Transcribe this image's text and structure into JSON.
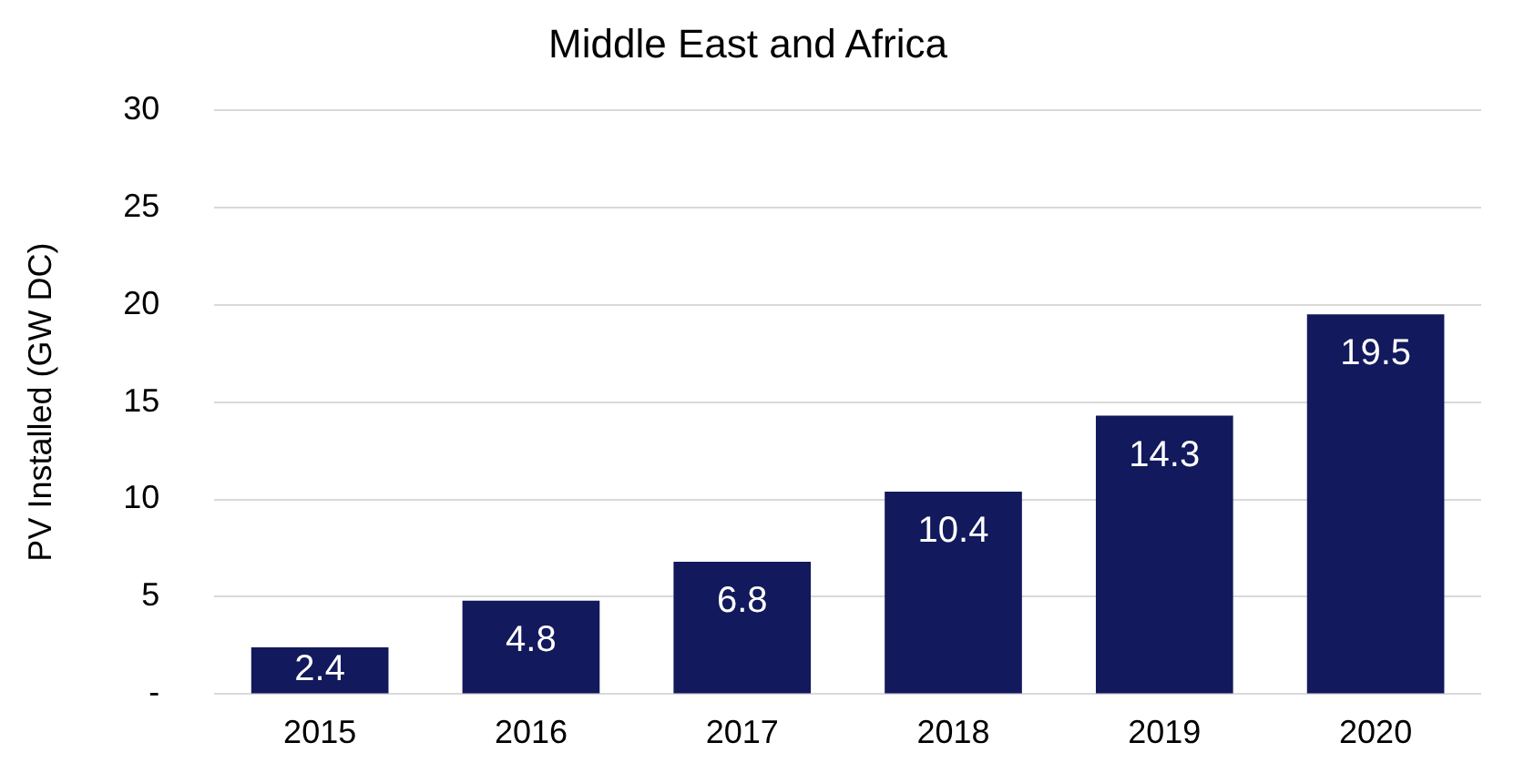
{
  "chart_data": {
    "type": "bar",
    "title": "Middle East and Africa",
    "ylabel": "PV Installed (GW DC)",
    "categories": [
      "2015",
      "2016",
      "2017",
      "2018",
      "2019",
      "2020"
    ],
    "values": [
      2.4,
      4.8,
      6.8,
      10.4,
      14.3,
      19.5
    ],
    "color": "#12195c",
    "ylim": [
      0,
      30
    ],
    "yticks": [
      {
        "value": 0,
        "label": "-"
      },
      5,
      10,
      15,
      20,
      25,
      30
    ],
    "grid": "y",
    "data_labels": true
  }
}
